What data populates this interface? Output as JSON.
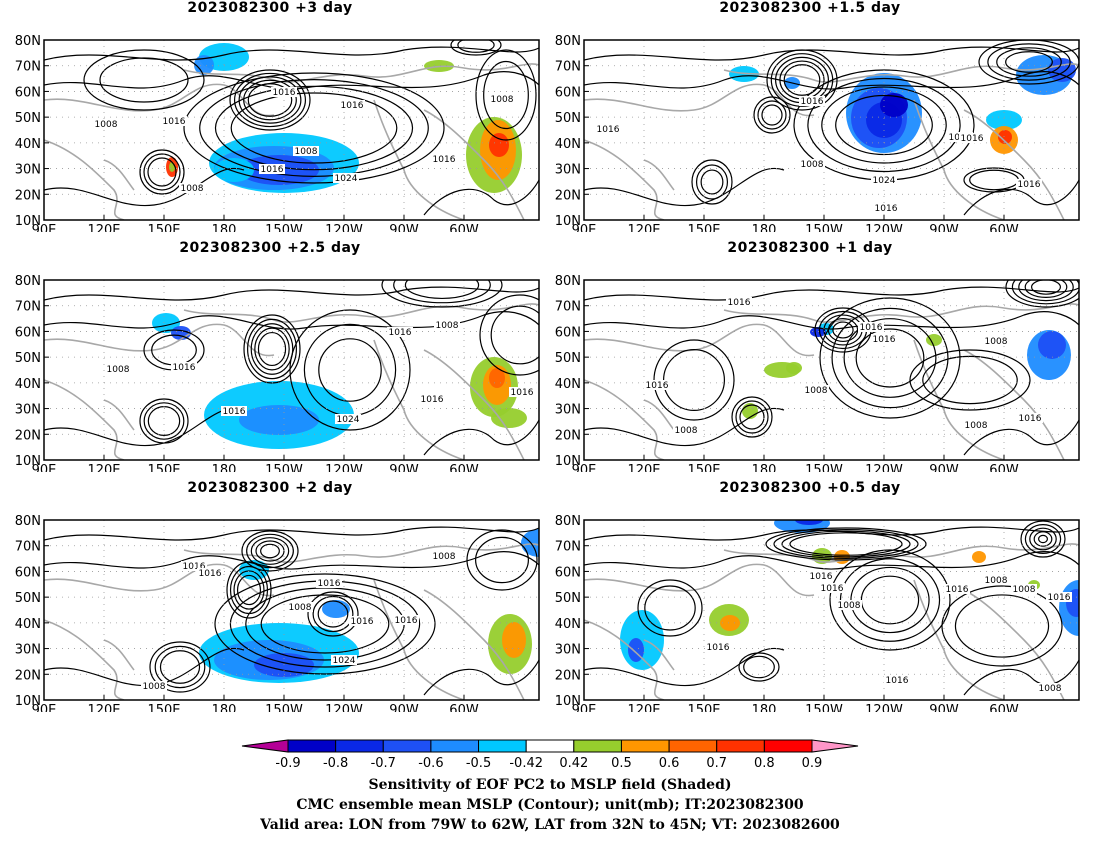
{
  "panels": [
    {
      "title": "2023082300  +3 day",
      "contour_labels": [
        "1008",
        "1016",
        "1016",
        "1008",
        "1016",
        "1008",
        "1016",
        "1024",
        "1016",
        "1008"
      ]
    },
    {
      "title": "2023082300  +1.5 day",
      "contour_labels": [
        "1016",
        "1008",
        "1008",
        "1016",
        "1016",
        "1008",
        "1024",
        "1016",
        "1016",
        "1016"
      ]
    },
    {
      "title": "2023082300  +2.5 day",
      "contour_labels": [
        "1008",
        "1016",
        "1016",
        "1008",
        "1016",
        "1024",
        "1016",
        "1016"
      ]
    },
    {
      "title": "2023082300  +1 day",
      "contour_labels": [
        "1016",
        "1016",
        "1016",
        "1008",
        "1016",
        "1008",
        "1008",
        "1016",
        "1008"
      ]
    },
    {
      "title": "2023082300  +2 day",
      "contour_labels": [
        "1016",
        "1016",
        "1008",
        "1016",
        "1008",
        "1016",
        "1024",
        "1016",
        "1008",
        "1008"
      ]
    },
    {
      "title": "2023082300  +0.5 day",
      "contour_labels": [
        "1016",
        "1016",
        "1016",
        "1008",
        "1016",
        "1016",
        "1008",
        "1008",
        "1016",
        "1008"
      ]
    }
  ],
  "lat_labels": [
    "80N",
    "70N",
    "60N",
    "50N",
    "40N",
    "30N",
    "20N",
    "10N"
  ],
  "lon_labels": [
    "90E",
    "120E",
    "150E",
    "180",
    "150W",
    "120W",
    "90W",
    "60W"
  ],
  "colorbar": {
    "ticks": [
      "-0.9",
      "-0.8",
      "-0.7",
      "-0.6",
      "-0.5",
      "-0.42",
      "0.42",
      "0.5",
      "0.6",
      "0.7",
      "0.8",
      "0.9"
    ],
    "colors": [
      "#b40096",
      "#0000c8",
      "#0a28e6",
      "#1e50f5",
      "#1e8cff",
      "#00c8ff",
      "#ffffff",
      "#96cd2d",
      "#ff9600",
      "#ff6400",
      "#ff3200",
      "#ff0000",
      "#ff96c8"
    ]
  },
  "caption": {
    "line1": "Sensitivity of EOF PC2 to MSLP field (Shaded)",
    "line2": "CMC ensemble mean MSLP (Contour); unit(mb); IT:2023082300",
    "line3": "Valid area: LON from 79W to 62W, LAT from 32N to 45N; VT: 2023082600"
  }
}
